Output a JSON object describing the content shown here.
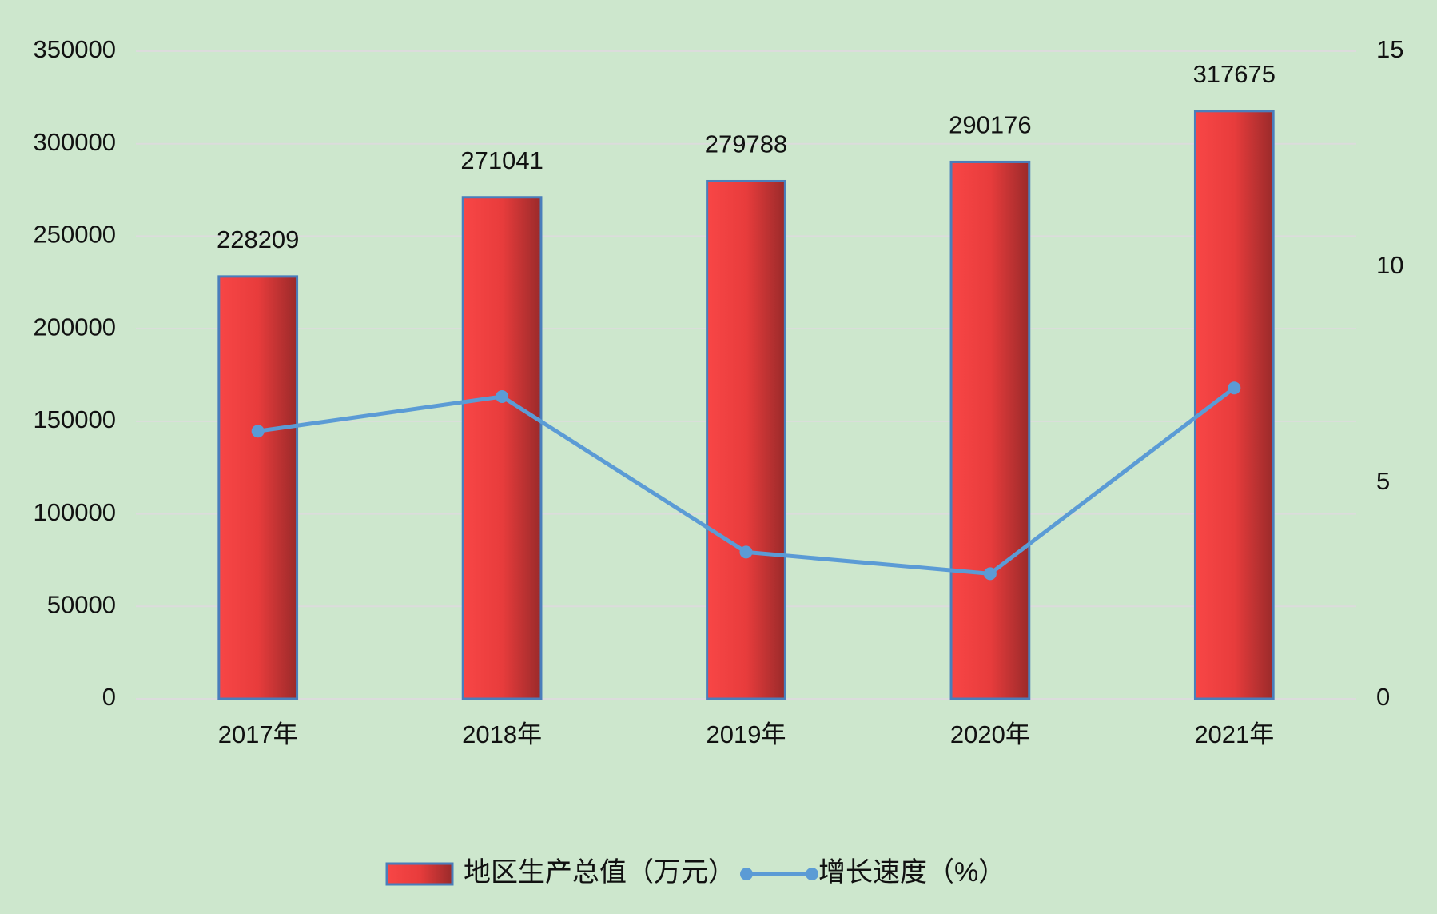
{
  "chart_data": {
    "type": "bar-line",
    "categories": [
      "2017年",
      "2018年",
      "2019年",
      "2020年",
      "2021年"
    ],
    "series": [
      {
        "name": "地区生产总值（万元）",
        "type": "bar",
        "color": "#f24040",
        "values": [
          228209,
          271041,
          279788,
          290176,
          317675
        ]
      },
      {
        "name": "增长速度（%）",
        "type": "line",
        "axis": "y2",
        "color": "#5b9bd5",
        "values": [
          6.2,
          7.0,
          3.4,
          2.9,
          7.2
        ]
      }
    ],
    "ylim": [
      0,
      350000
    ],
    "yticks": [
      0,
      50000,
      100000,
      150000,
      200000,
      250000,
      300000,
      350000
    ],
    "y2lim": [
      0,
      15
    ],
    "y2ticks": [
      0,
      5,
      10,
      15
    ],
    "grid": true,
    "legend": "bottom"
  }
}
